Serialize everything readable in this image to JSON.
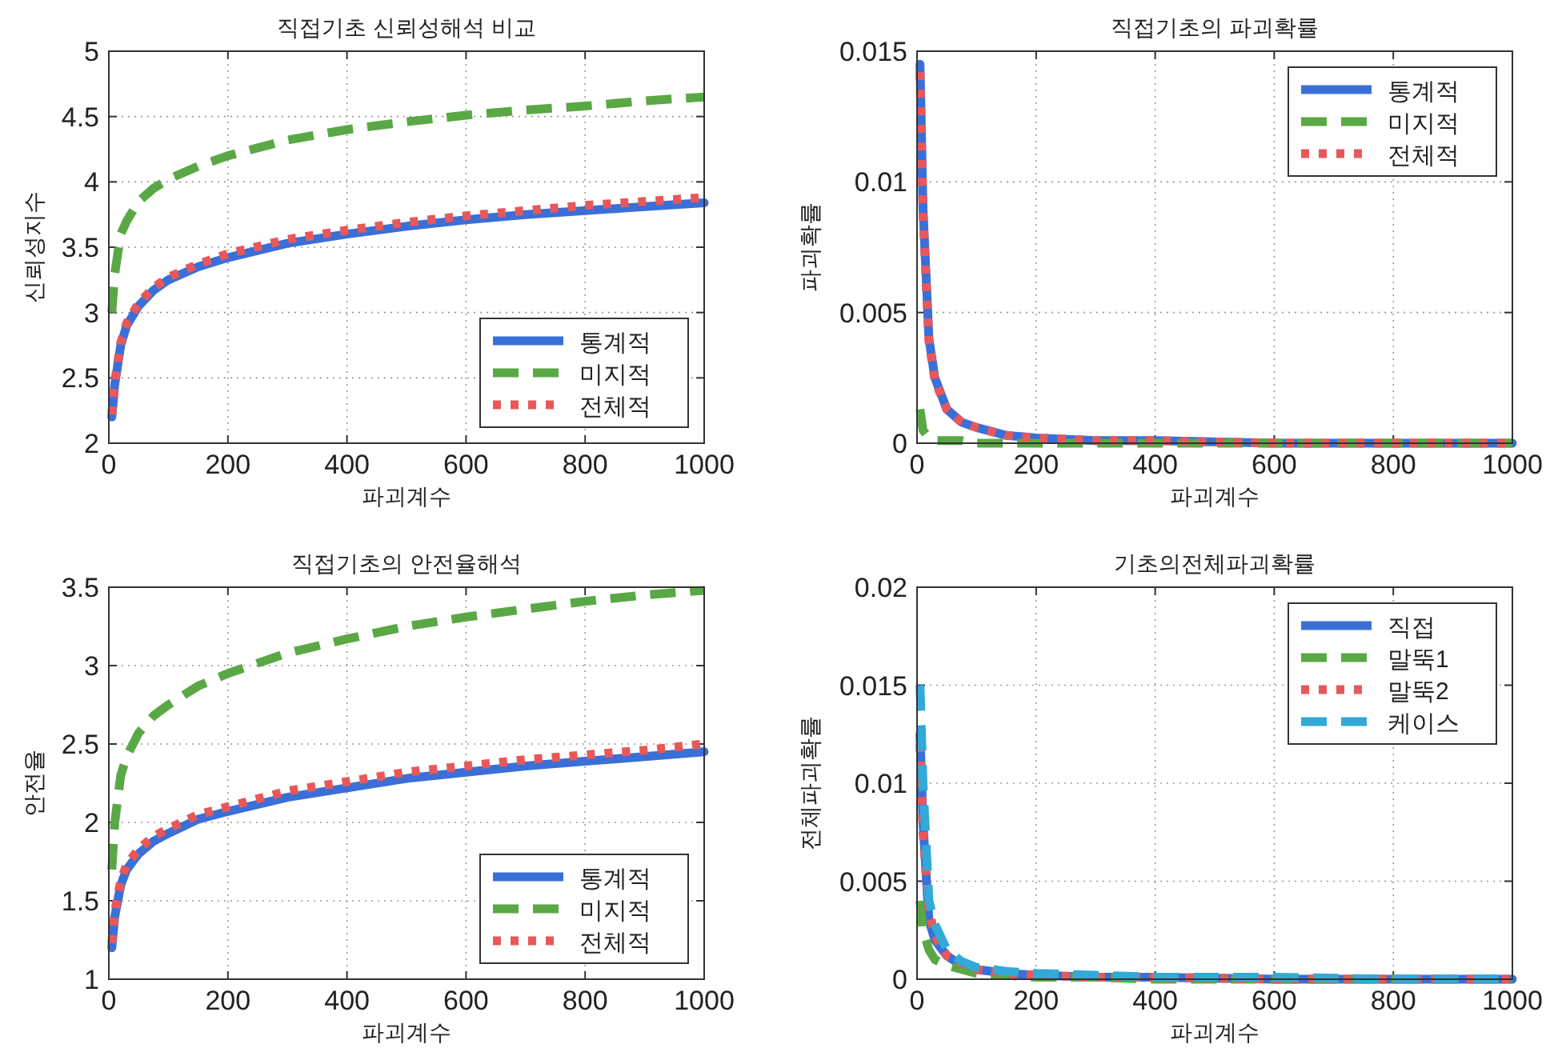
{
  "chart_data": [
    {
      "type": "line",
      "title": "직접기초 신뢰성해석 비교",
      "xlabel": "파괴계수",
      "ylabel": "신뢰성지수",
      "x": [
        5,
        10,
        20,
        30,
        50,
        75,
        100,
        150,
        200,
        300,
        400,
        500,
        600,
        700,
        800,
        900,
        1000
      ],
      "xlim": [
        0,
        1000
      ],
      "xticks": [
        0,
        200,
        400,
        600,
        800,
        1000
      ],
      "ylim": [
        2,
        5
      ],
      "yticks": [
        2,
        2.5,
        3,
        3.5,
        4,
        4.5,
        5
      ],
      "grid": true,
      "legend": "bottom right",
      "series": [
        {
          "name": "통계적",
          "color": "#3a6fd8",
          "line_style": "solid",
          "values": [
            2.2,
            2.45,
            2.75,
            2.9,
            3.05,
            3.17,
            3.25,
            3.35,
            3.42,
            3.53,
            3.6,
            3.66,
            3.71,
            3.75,
            3.78,
            3.81,
            3.84
          ]
        },
        {
          "name": "미지적",
          "color": "#5aa845",
          "line_style": "dashed",
          "values": [
            3.0,
            3.3,
            3.6,
            3.7,
            3.85,
            3.95,
            4.02,
            4.12,
            4.2,
            4.32,
            4.4,
            4.46,
            4.51,
            4.55,
            4.58,
            4.62,
            4.65
          ]
        },
        {
          "name": "전체적",
          "color": "#e8585a",
          "line_style": "dotted",
          "values": [
            2.22,
            2.47,
            2.77,
            2.92,
            3.07,
            3.19,
            3.27,
            3.37,
            3.45,
            3.56,
            3.63,
            3.69,
            3.74,
            3.78,
            3.82,
            3.85,
            3.88
          ]
        }
      ]
    },
    {
      "type": "line",
      "title": "직접기초의 파괴확률",
      "xlabel": "파괴계수",
      "ylabel": "파괴확률",
      "x": [
        5,
        10,
        20,
        30,
        50,
        75,
        100,
        150,
        200,
        300,
        400,
        600,
        800,
        1000
      ],
      "xlim": [
        0,
        1000
      ],
      "xticks": [
        0,
        200,
        400,
        600,
        800,
        1000
      ],
      "ylim": [
        0,
        0.015
      ],
      "yticks": [
        0,
        0.005,
        0.01,
        0.015
      ],
      "grid": true,
      "legend": "top right",
      "series": [
        {
          "name": "통계적",
          "color": "#3a6fd8",
          "line_style": "solid",
          "values": [
            0.0145,
            0.009,
            0.004,
            0.0025,
            0.0013,
            0.0008,
            0.0006,
            0.0003,
            0.0002,
            0.0001,
            0.0001,
            0,
            0,
            0
          ]
        },
        {
          "name": "미지적",
          "color": "#5aa845",
          "line_style": "dashed",
          "values": [
            0.0013,
            0.0005,
            0.0002,
            0.0001,
            0.0001,
            0.0001,
            0,
            0,
            0,
            0,
            0,
            0,
            0,
            0
          ]
        },
        {
          "name": "전체적",
          "color": "#e8585a",
          "line_style": "dotted",
          "values": [
            0.0142,
            0.0088,
            0.0039,
            0.0024,
            0.0013,
            0.0008,
            0.0006,
            0.0003,
            0.0002,
            0.0001,
            0.0001,
            0,
            0,
            0
          ]
        }
      ]
    },
    {
      "type": "line",
      "title": "직접기초의 안전율해석",
      "xlabel": "파괴계수",
      "ylabel": "안전율",
      "x": [
        5,
        10,
        20,
        30,
        50,
        75,
        100,
        150,
        200,
        300,
        400,
        500,
        600,
        700,
        800,
        900,
        1000
      ],
      "xlim": [
        0,
        1000
      ],
      "xticks": [
        0,
        200,
        400,
        600,
        800,
        1000
      ],
      "ylim": [
        1,
        3.5
      ],
      "yticks": [
        1,
        1.5,
        2,
        2.5,
        3,
        3.5
      ],
      "grid": true,
      "legend": "bottom right",
      "series": [
        {
          "name": "통계적",
          "color": "#3a6fd8",
          "line_style": "solid",
          "values": [
            1.2,
            1.4,
            1.6,
            1.7,
            1.8,
            1.88,
            1.93,
            2.02,
            2.07,
            2.16,
            2.22,
            2.28,
            2.32,
            2.36,
            2.39,
            2.42,
            2.45
          ]
        },
        {
          "name": "미지적",
          "color": "#5aa845",
          "line_style": "dashed",
          "values": [
            1.7,
            2.0,
            2.3,
            2.42,
            2.57,
            2.68,
            2.75,
            2.87,
            2.95,
            3.08,
            3.17,
            3.25,
            3.31,
            3.36,
            3.41,
            3.45,
            3.48
          ]
        },
        {
          "name": "전체적",
          "color": "#e8585a",
          "line_style": "dotted",
          "values": [
            1.23,
            1.43,
            1.63,
            1.73,
            1.83,
            1.91,
            1.96,
            2.05,
            2.1,
            2.2,
            2.26,
            2.32,
            2.36,
            2.4,
            2.43,
            2.46,
            2.5
          ]
        }
      ]
    },
    {
      "type": "line",
      "title": "기초의전체파괴확률",
      "xlabel": "파괴계수",
      "ylabel": "전체파괴확률",
      "x": [
        5,
        10,
        20,
        30,
        50,
        75,
        100,
        150,
        200,
        300,
        400,
        600,
        800,
        1000
      ],
      "xlim": [
        0,
        1000
      ],
      "xticks": [
        0,
        200,
        400,
        600,
        800,
        1000
      ],
      "ylim": [
        0,
        0.02
      ],
      "yticks": [
        0,
        0.005,
        0.01,
        0.015,
        0.02
      ],
      "grid": true,
      "legend": "top right",
      "series": [
        {
          "name": "직접",
          "color": "#3a6fd8",
          "line_style": "solid",
          "values": [
            0.0125,
            0.008,
            0.003,
            0.002,
            0.0012,
            0.0007,
            0.0005,
            0.0003,
            0.0002,
            0.0001,
            0.0001,
            0,
            0,
            0
          ]
        },
        {
          "name": "말뚝1",
          "color": "#5aa845",
          "line_style": "dashed",
          "values": [
            0.004,
            0.0025,
            0.0015,
            0.001,
            0.0007,
            0.0005,
            0.0003,
            0.0002,
            0.0001,
            0.0001,
            0,
            0,
            0,
            0
          ]
        },
        {
          "name": "말뚝2",
          "color": "#e8585a",
          "line_style": "dotted",
          "values": [
            0.012,
            0.0075,
            0.0035,
            0.0022,
            0.0012,
            0.0008,
            0.0005,
            0.0003,
            0.0002,
            0.0001,
            0.0001,
            0,
            0,
            0
          ]
        },
        {
          "name": "케이스",
          "color": "#33a9d8",
          "line_style": "dashed",
          "values": [
            0.015,
            0.01,
            0.004,
            0.0028,
            0.0015,
            0.0009,
            0.0006,
            0.0004,
            0.0003,
            0.0002,
            0.0001,
            0.0001,
            0,
            0
          ]
        }
      ]
    }
  ]
}
